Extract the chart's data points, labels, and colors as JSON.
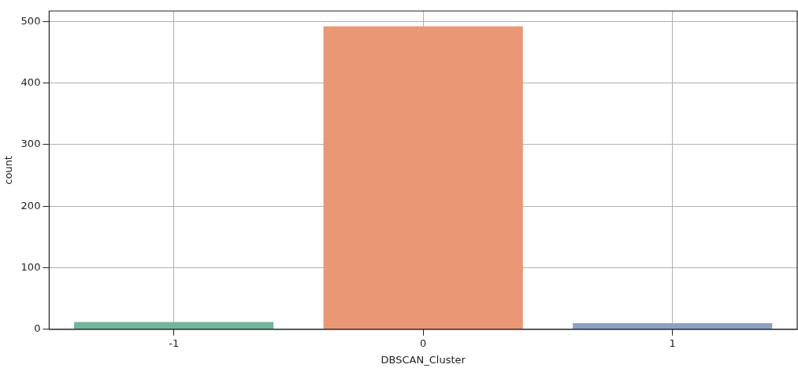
{
  "chart_data": {
    "type": "bar",
    "xlabel": "DBSCAN_Cluster",
    "ylabel": "count",
    "categories": [
      "-1",
      "0",
      "1"
    ],
    "values": [
      12,
      492,
      10
    ],
    "colors": [
      "#72b59a",
      "#e99775",
      "#8e9fc4"
    ],
    "ylim": [
      0,
      517
    ],
    "yticks": [
      0,
      100,
      200,
      300,
      400,
      500
    ],
    "grid": true
  }
}
